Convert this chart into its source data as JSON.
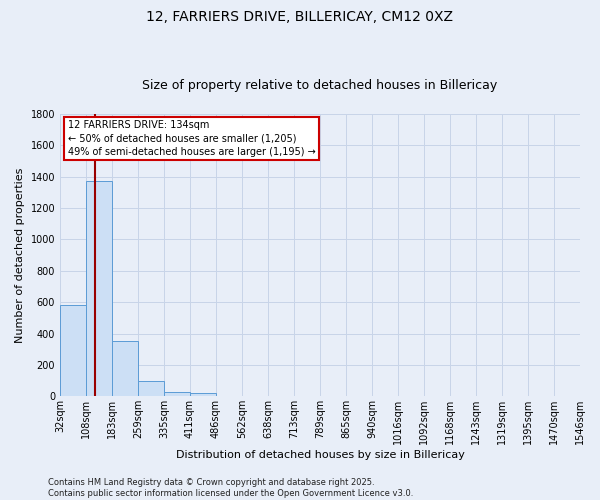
{
  "title1": "12, FARRIERS DRIVE, BILLERICAY, CM12 0XZ",
  "title2": "Size of property relative to detached houses in Billericay",
  "xlabel": "Distribution of detached houses by size in Billericay",
  "ylabel": "Number of detached properties",
  "bar_values": [
    585,
    1370,
    350,
    95,
    30,
    20,
    0,
    0,
    0,
    0,
    0,
    0,
    0,
    0,
    0,
    0,
    0,
    0,
    0,
    0
  ],
  "bar_labels": [
    "32sqm",
    "108sqm",
    "183sqm",
    "259sqm",
    "335sqm",
    "411sqm",
    "486sqm",
    "562sqm",
    "638sqm",
    "713sqm",
    "789sqm",
    "865sqm",
    "940sqm",
    "1016sqm",
    "1092sqm",
    "1168sqm",
    "1243sqm",
    "1319sqm",
    "1395sqm",
    "1470sqm",
    "1546sqm"
  ],
  "bar_color": "#ccdff5",
  "bar_edge_color": "#5b9bd5",
  "grid_color": "#c8d4e8",
  "background_color": "#e8eef8",
  "red_line_x": 1.347,
  "annotation_text": "12 FARRIERS DRIVE: 134sqm\n← 50% of detached houses are smaller (1,205)\n49% of semi-detached houses are larger (1,195) →",
  "annotation_box_color": "#ffffff",
  "annotation_border_color": "#cc0000",
  "ylim": [
    0,
    1800
  ],
  "yticks": [
    0,
    200,
    400,
    600,
    800,
    1000,
    1200,
    1400,
    1600,
    1800
  ],
  "footer_text": "Contains HM Land Registry data © Crown copyright and database right 2025.\nContains public sector information licensed under the Open Government Licence v3.0.",
  "title_fontsize": 10,
  "subtitle_fontsize": 9,
  "axis_label_fontsize": 8,
  "tick_fontsize": 7,
  "annotation_fontsize": 7
}
